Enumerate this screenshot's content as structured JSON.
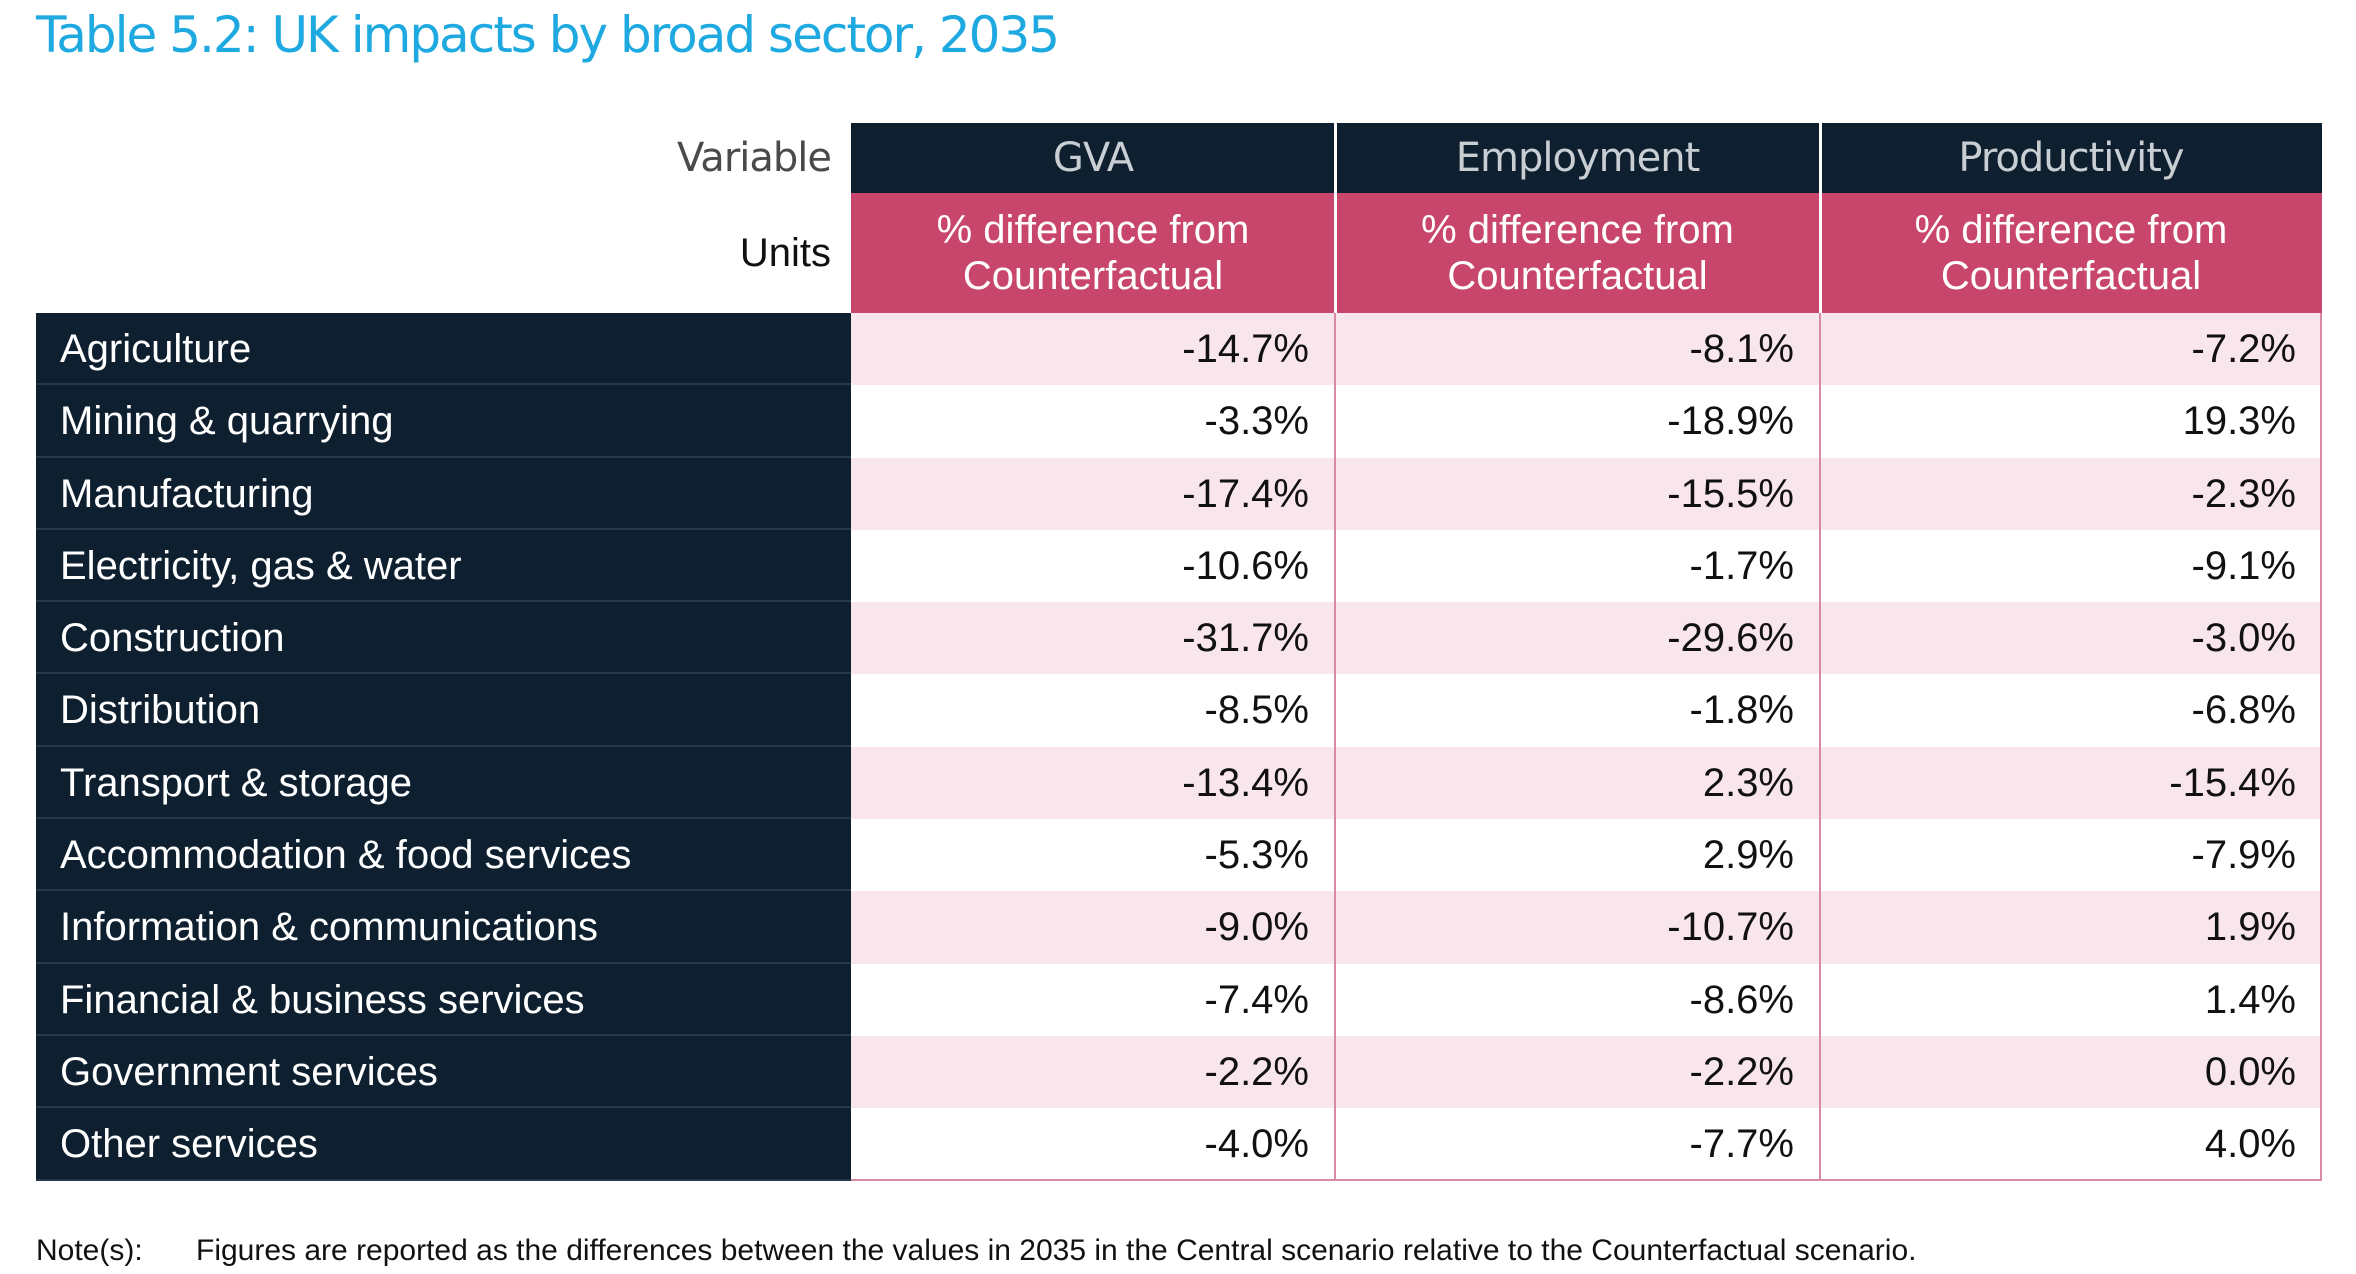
{
  "title": "Table 5.2: UK impacts by broad sector, 2035",
  "header": {
    "variable_label": "Variable",
    "units_label": "Units",
    "columns": [
      {
        "name": "GVA",
        "units": "% difference from Counterfactual"
      },
      {
        "name": "Employment",
        "units": "% difference from Counterfactual"
      },
      {
        "name": "Productivity",
        "units": "% difference from Counterfactual"
      }
    ]
  },
  "rows": [
    {
      "sector": "Agriculture",
      "gva": "-14.7%",
      "employment": "-8.1%",
      "productivity": "-7.2%"
    },
    {
      "sector": "Mining & quarrying",
      "gva": "-3.3%",
      "employment": "-18.9%",
      "productivity": "19.3%"
    },
    {
      "sector": "Manufacturing",
      "gva": "-17.4%",
      "employment": "-15.5%",
      "productivity": "-2.3%"
    },
    {
      "sector": "Electricity, gas & water",
      "gva": "-10.6%",
      "employment": "-1.7%",
      "productivity": "-9.1%"
    },
    {
      "sector": "Construction",
      "gva": "-31.7%",
      "employment": "-29.6%",
      "productivity": "-3.0%"
    },
    {
      "sector": "Distribution",
      "gva": "-8.5%",
      "employment": "-1.8%",
      "productivity": "-6.8%"
    },
    {
      "sector": "Transport & storage",
      "gva": "-13.4%",
      "employment": "2.3%",
      "productivity": "-15.4%"
    },
    {
      "sector": "Accommodation & food services",
      "gva": "-5.3%",
      "employment": "2.9%",
      "productivity": "-7.9%"
    },
    {
      "sector": "Information & communications",
      "gva": "-9.0%",
      "employment": "-10.7%",
      "productivity": "1.9%"
    },
    {
      "sector": "Financial & business services",
      "gva": "-7.4%",
      "employment": "-8.6%",
      "productivity": "1.4%"
    },
    {
      "sector": "Government services",
      "gva": "-2.2%",
      "employment": "-2.2%",
      "productivity": "0.0%"
    },
    {
      "sector": "Other services",
      "gva": "-4.0%",
      "employment": "-7.7%",
      "productivity": "4.0%"
    }
  ],
  "note": {
    "label": "Note(s):",
    "text": "Figures are reported as the differences between the values in 2035 in the Central scenario relative to the Counterfactual scenario."
  },
  "colors": {
    "title": "#1fa9e1",
    "header_dark": "#0e2030",
    "units_pink": "#c8466c",
    "row_shade": "#f9e6ec"
  }
}
